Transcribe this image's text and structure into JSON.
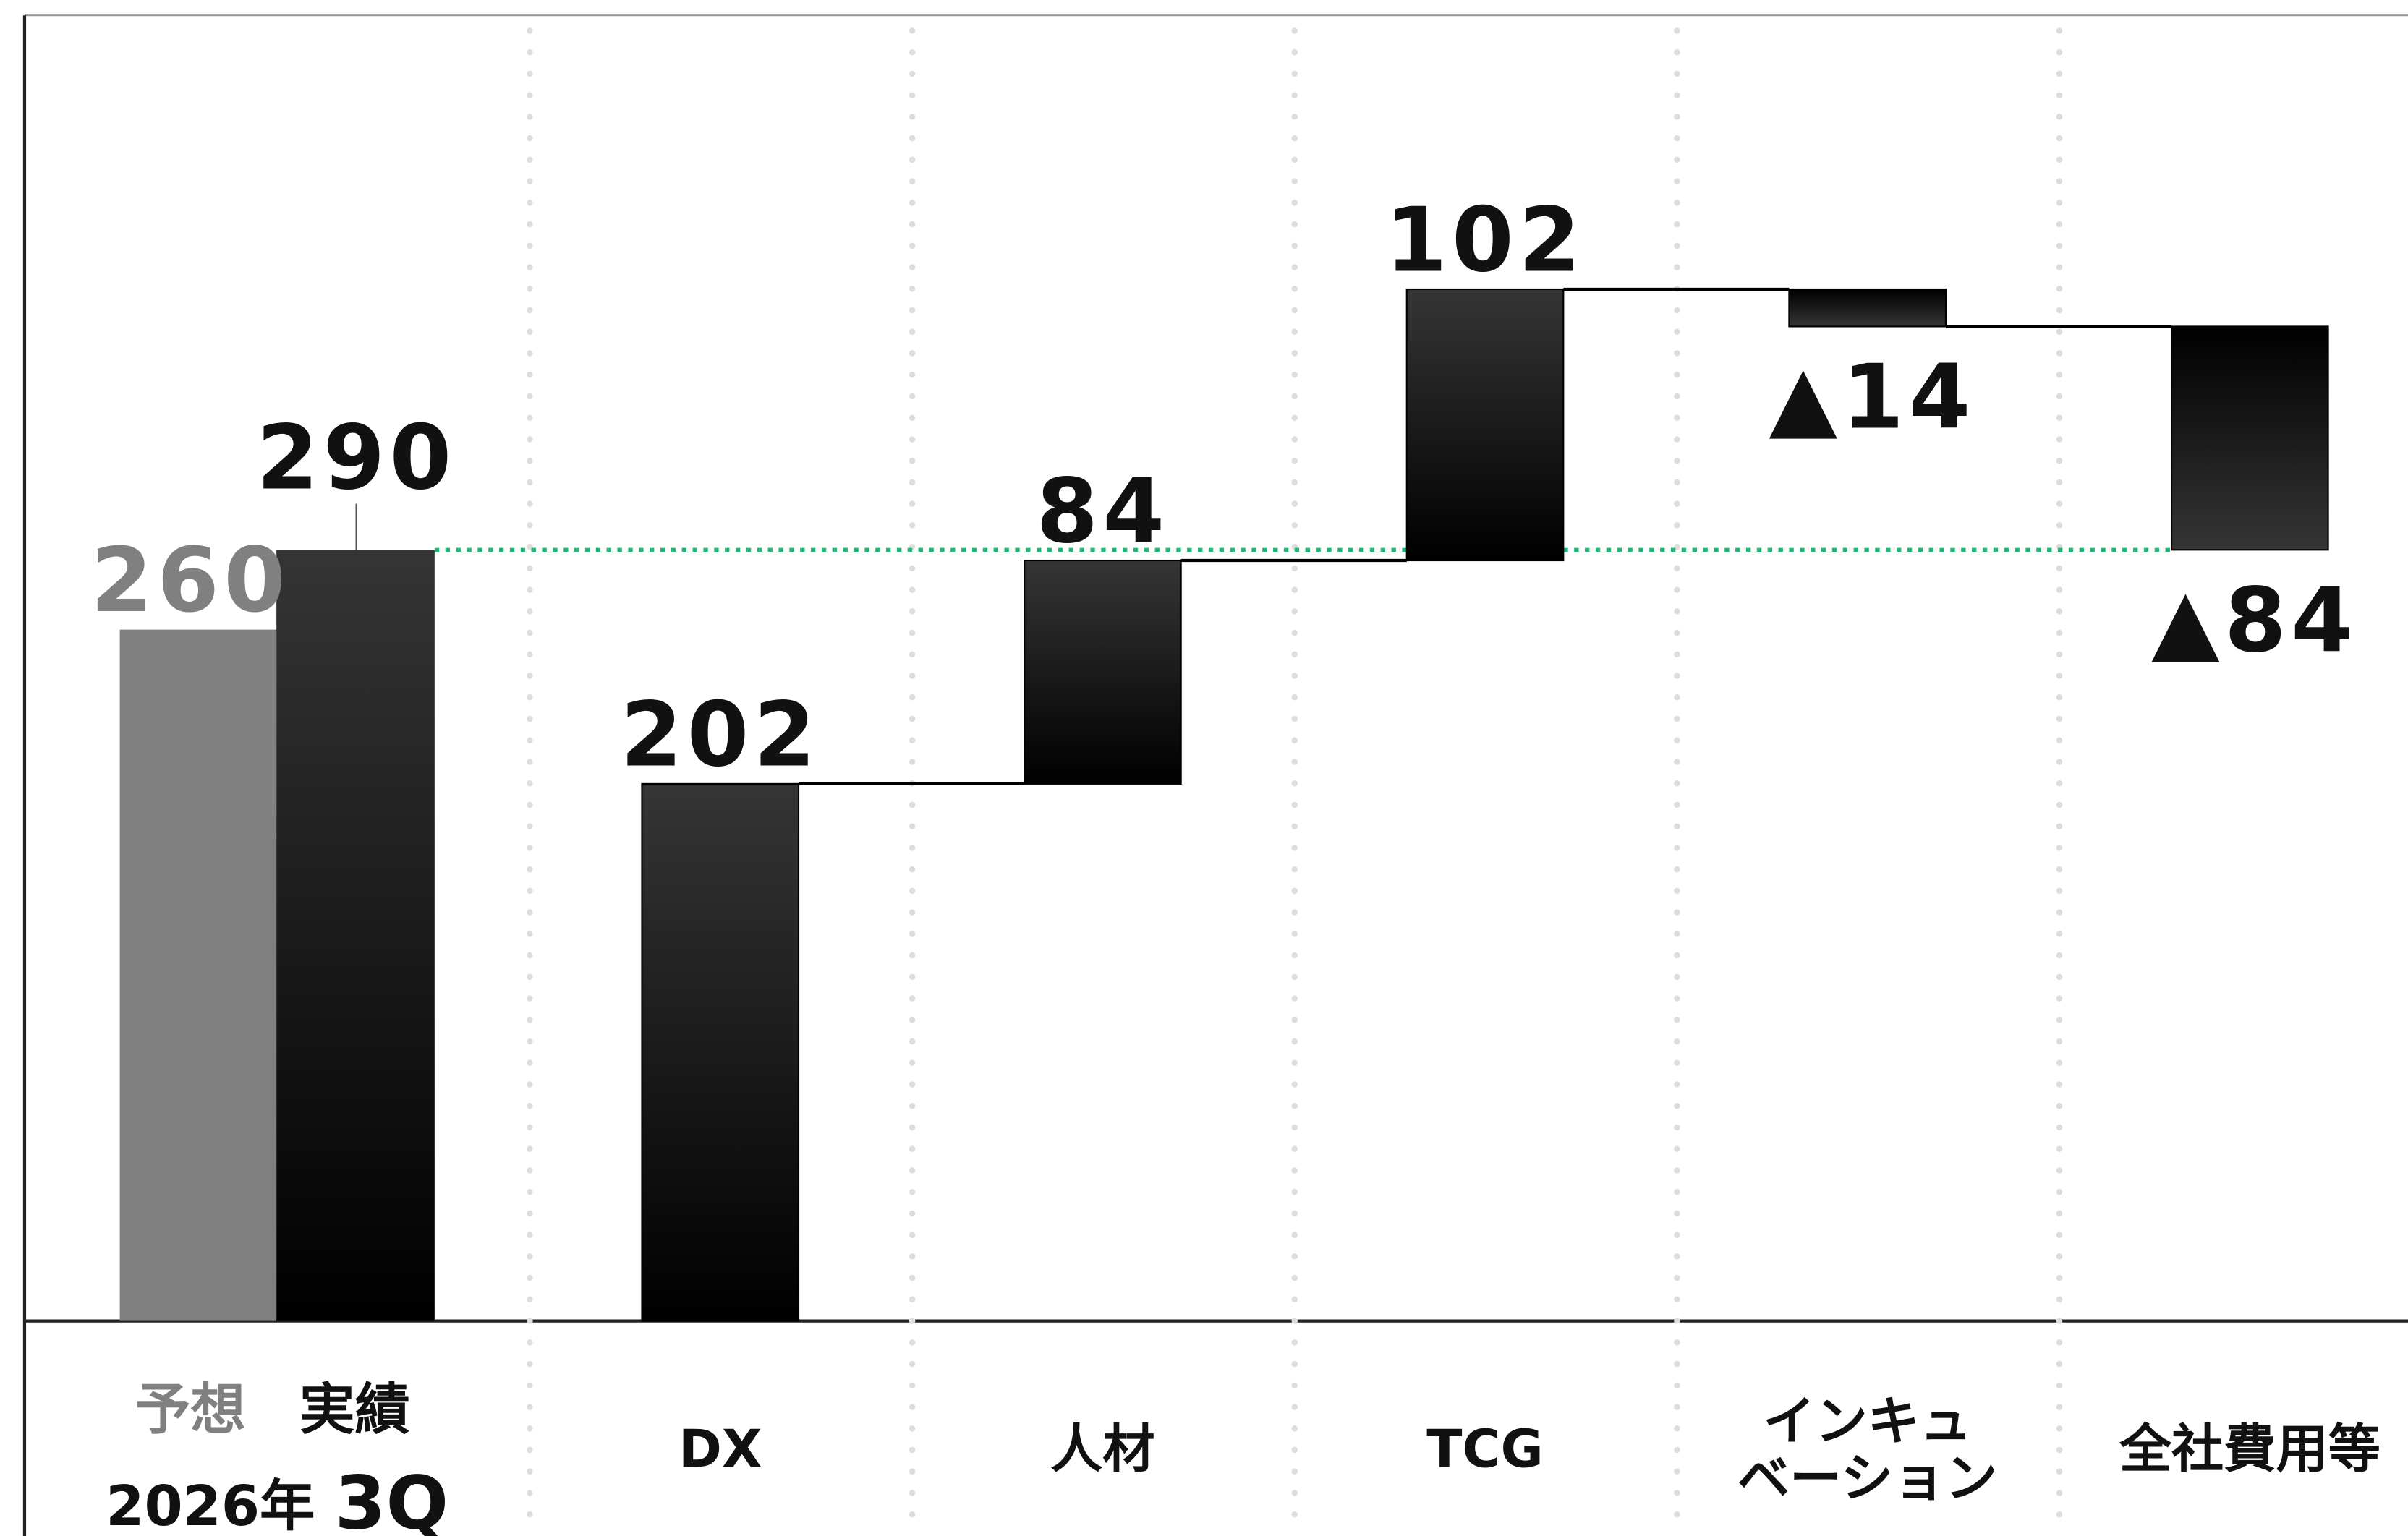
{
  "chart_data": {
    "type": "waterfall",
    "start": [
      {
        "name": "予想",
        "value": 260,
        "color": "#808080"
      },
      {
        "name": "実績",
        "value": 290,
        "color": "#111111"
      }
    ],
    "start_period": [
      "2026年",
      "3Q"
    ],
    "categories": [
      "DX",
      "人材",
      "TCG",
      "インキュ\nベーション",
      "全社費用等"
    ],
    "values": [
      202,
      84,
      102,
      -14,
      -84
    ],
    "value_labels": [
      "202",
      "84",
      "102",
      "▲14",
      "▲84"
    ],
    "color": "#000000",
    "reference_color": "#1fb877",
    "ylim": [
      0,
      491
    ]
  }
}
